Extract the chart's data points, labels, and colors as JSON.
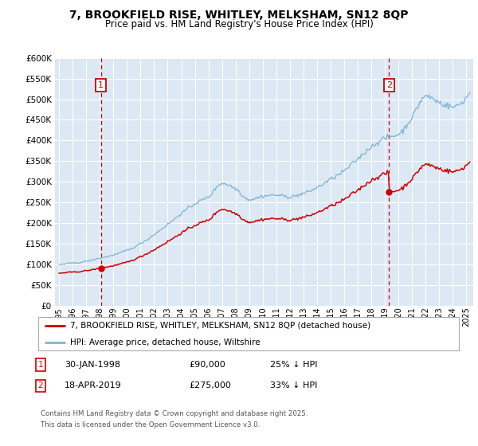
{
  "title": "7, BROOKFIELD RISE, WHITLEY, MELKSHAM, SN12 8QP",
  "subtitle": "Price paid vs. HM Land Registry's House Price Index (HPI)",
  "legend_line1": "7, BROOKFIELD RISE, WHITLEY, MELKSHAM, SN12 8QP (detached house)",
  "legend_line2": "HPI: Average price, detached house, Wiltshire",
  "sale1_date": "30-JAN-1998",
  "sale1_price": 90000,
  "sale1_label": "£90,000",
  "sale1_hpi_pct": "25% ↓ HPI",
  "sale2_date": "18-APR-2019",
  "sale2_price": 275000,
  "sale2_label": "£275,000",
  "sale2_hpi_pct": "33% ↓ HPI",
  "footnote_line1": "Contains HM Land Registry data © Crown copyright and database right 2025.",
  "footnote_line2": "This data is licensed under the Open Government Licence v3.0.",
  "price_color": "#cc0000",
  "hpi_color": "#7fb3d3",
  "marker_box_color": "#cc0000",
  "vline_color": "#cc0000",
  "plot_bg": "#dce9f5",
  "ylim": [
    0,
    600000
  ],
  "yticks": [
    0,
    50000,
    100000,
    150000,
    200000,
    250000,
    300000,
    350000,
    400000,
    450000,
    500000,
    550000,
    600000
  ],
  "sale1_x": 1998.08,
  "sale2_x": 2019.3,
  "xmin": 1994.7,
  "xmax": 2025.5
}
